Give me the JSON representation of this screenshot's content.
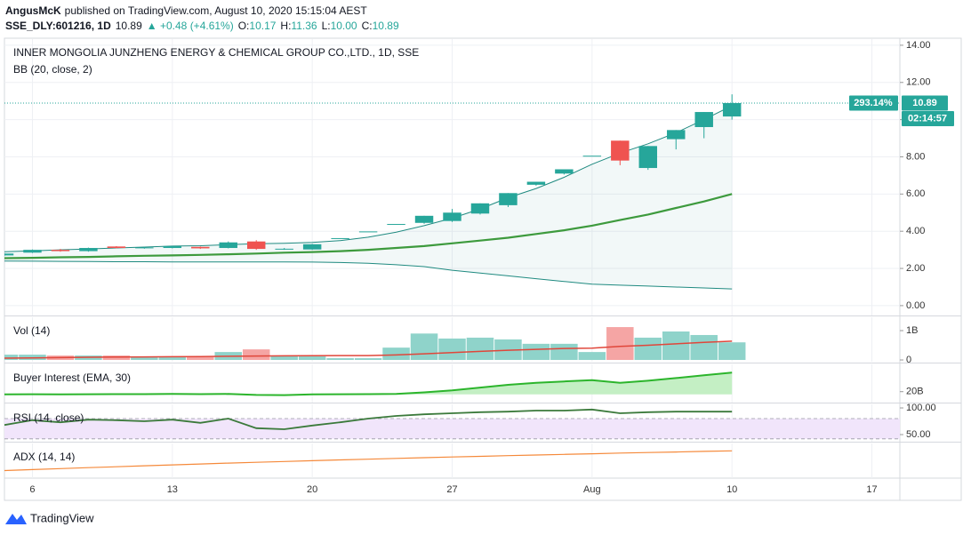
{
  "header": {
    "author": "AngusMcK",
    "published": "published on TradingView.com, August 10, 2020 15:15:04 AEST",
    "symbol": "SSE_DLY:601216, 1D",
    "last": "10.89",
    "change": "▲ +0.48 (+4.61%)",
    "ohlc": [
      {
        "label": "O:",
        "value": "10.17"
      },
      {
        "label": "H:",
        "value": "11.36"
      },
      {
        "label": "L:",
        "value": "10.00"
      },
      {
        "label": "C:",
        "value": "10.89"
      }
    ],
    "change_label": "293.14%",
    "countdown": "02:14:57",
    "footer": "TradingView"
  },
  "chart_data": [
    {
      "type": "candlestick",
      "title": "INNER MONGOLIA JUNZHENG ENERGY & CHEMICAL GROUP CO.,LTD., 1D, SSE",
      "subtitle": "BB (20, close, 2)",
      "x": [
        "2020-07-03",
        "2020-07-06",
        "2020-07-07",
        "2020-07-08",
        "2020-07-09",
        "2020-07-10",
        "2020-07-13",
        "2020-07-14",
        "2020-07-15",
        "2020-07-16",
        "2020-07-17",
        "2020-07-20",
        "2020-07-21",
        "2020-07-22",
        "2020-07-23",
        "2020-07-24",
        "2020-07-27",
        "2020-07-28",
        "2020-07-29",
        "2020-07-30",
        "2020-07-31",
        "2020-08-03",
        "2020-08-04",
        "2020-08-05",
        "2020-08-06",
        "2020-08-07",
        "2020-08-10"
      ],
      "open": [
        2.7,
        2.85,
        3.0,
        2.93,
        3.18,
        3.1,
        3.1,
        3.16,
        3.1,
        3.45,
        3.05,
        3.02,
        3.63,
        3.99,
        4.39,
        4.45,
        4.55,
        4.95,
        5.4,
        6.5,
        7.1,
        8.06,
        8.87,
        7.4,
        8.95,
        9.6,
        10.17
      ],
      "high": [
        2.82,
        3.02,
        3.05,
        3.12,
        3.2,
        3.16,
        3.22,
        3.18,
        3.45,
        3.52,
        3.1,
        3.32,
        3.63,
        3.99,
        4.39,
        4.83,
        5.2,
        5.5,
        6.05,
        6.66,
        7.33,
        8.06,
        8.87,
        8.58,
        9.44,
        10.41,
        11.36
      ],
      "low": [
        2.68,
        2.83,
        2.9,
        2.9,
        3.08,
        3.06,
        3.08,
        3.05,
        3.08,
        3.0,
        3.0,
        3.0,
        3.63,
        3.99,
        4.39,
        4.4,
        4.5,
        4.9,
        5.3,
        6.45,
        7.05,
        8.06,
        7.55,
        7.3,
        8.4,
        9.0,
        10.0
      ],
      "close": [
        2.8,
        3.0,
        2.93,
        3.1,
        3.1,
        3.13,
        3.2,
        3.08,
        3.4,
        3.05,
        3.06,
        3.3,
        3.63,
        3.99,
        4.39,
        4.83,
        5.0,
        5.5,
        6.05,
        6.66,
        7.33,
        8.06,
        7.8,
        8.58,
        9.44,
        10.41,
        10.89
      ],
      "bb": {
        "upper": [
          2.9,
          2.95,
          3.0,
          3.05,
          3.1,
          3.15,
          3.2,
          3.22,
          3.28,
          3.33,
          3.35,
          3.4,
          3.5,
          3.68,
          3.95,
          4.3,
          4.7,
          5.2,
          5.8,
          6.3,
          6.9,
          7.6,
          8.2,
          8.7,
          9.3,
          10.0,
          10.75
        ],
        "basis": [
          2.55,
          2.57,
          2.6,
          2.62,
          2.65,
          2.68,
          2.7,
          2.73,
          2.76,
          2.8,
          2.85,
          2.88,
          2.93,
          3.0,
          3.1,
          3.2,
          3.35,
          3.5,
          3.65,
          3.85,
          4.05,
          4.3,
          4.6,
          4.9,
          5.25,
          5.6,
          6.0
        ],
        "lower": [
          2.4,
          2.39,
          2.38,
          2.37,
          2.36,
          2.36,
          2.35,
          2.35,
          2.35,
          2.35,
          2.35,
          2.34,
          2.32,
          2.28,
          2.2,
          2.1,
          1.9,
          1.75,
          1.6,
          1.45,
          1.3,
          1.15,
          1.1,
          1.05,
          1.0,
          0.95,
          0.9
        ]
      },
      "up_color": "#26a69a",
      "down_color": "#ef5350",
      "band_color": "#1f8a80",
      "basis_color": "#3d9a3d",
      "ylim": [
        -0.53,
        14.33
      ],
      "yticks": [
        {
          "value": 0,
          "label": "0.00"
        },
        {
          "value": 2,
          "label": "2.00"
        },
        {
          "value": 4,
          "label": "4.00"
        },
        {
          "value": 6,
          "label": "6.00"
        },
        {
          "value": 8,
          "label": "8.00"
        },
        {
          "value": 10,
          "label": "10.00"
        },
        {
          "value": 12,
          "label": "12.00"
        },
        {
          "value": 14,
          "label": "14.00"
        }
      ],
      "grid": true
    },
    {
      "type": "bar",
      "title": "Vol (14)",
      "x": [
        "2020-07-03",
        "2020-07-06",
        "2020-07-07",
        "2020-07-08",
        "2020-07-09",
        "2020-07-10",
        "2020-07-13",
        "2020-07-14",
        "2020-07-15",
        "2020-07-16",
        "2020-07-17",
        "2020-07-20",
        "2020-07-21",
        "2020-07-22",
        "2020-07-23",
        "2020-07-24",
        "2020-07-27",
        "2020-07-28",
        "2020-07-29",
        "2020-07-30",
        "2020-07-31",
        "2020-08-03",
        "2020-08-04",
        "2020-08-05",
        "2020-08-06",
        "2020-08-07",
        "2020-08-10"
      ],
      "values": [
        180000000,
        180000000,
        150000000,
        150000000,
        150000000,
        100000000,
        100000000,
        100000000,
        270000000,
        360000000,
        150000000,
        120000000,
        60000000,
        60000000,
        420000000,
        900000000,
        730000000,
        760000000,
        700000000,
        550000000,
        550000000,
        270000000,
        1120000000,
        760000000,
        970000000,
        850000000,
        600000000
      ],
      "ma": [
        60000000,
        70000000,
        80000000,
        90000000,
        100000000,
        105000000,
        110000000,
        115000000,
        125000000,
        135000000,
        140000000,
        145000000,
        148000000,
        150000000,
        170000000,
        210000000,
        250000000,
        290000000,
        330000000,
        360000000,
        390000000,
        405000000,
        460000000,
        500000000,
        550000000,
        600000000,
        640000000
      ],
      "up_color": "#8fd3ca",
      "down_color": "#f5a5a4",
      "ma_color": "#e0463a",
      "ylim": [
        -60000000,
        1455000000
      ],
      "yticks": [
        {
          "value": 0,
          "label": "0"
        },
        {
          "value": 1000000000,
          "label": "1B"
        }
      ]
    },
    {
      "type": "area",
      "title": "Buyer Interest (EMA, 30)",
      "x": [
        "2020-07-03",
        "2020-07-06",
        "2020-07-07",
        "2020-07-08",
        "2020-07-09",
        "2020-07-10",
        "2020-07-13",
        "2020-07-14",
        "2020-07-15",
        "2020-07-16",
        "2020-07-17",
        "2020-07-20",
        "2020-07-21",
        "2020-07-22",
        "2020-07-23",
        "2020-07-24",
        "2020-07-27",
        "2020-07-28",
        "2020-07-29",
        "2020-07-30",
        "2020-07-31",
        "2020-08-03",
        "2020-08-04",
        "2020-08-05",
        "2020-08-06",
        "2020-08-07",
        "2020-08-10"
      ],
      "values": [
        18000000000,
        18100000000,
        18000000000,
        18100000000,
        18200000000,
        18200000000,
        18300000000,
        18200000000,
        18300000000,
        17600000000,
        17500000000,
        18000000000,
        18100000000,
        18200000000,
        18300000000,
        19500000000,
        21000000000,
        23000000000,
        25000000000,
        26500000000,
        27500000000,
        28500000000,
        26500000000,
        28000000000,
        30000000000,
        32000000000,
        34000000000
      ],
      "color": "#2cb52c",
      "fill": "#c4efc4",
      "ylim": [
        12000000000,
        40000000000
      ],
      "yticks": [
        {
          "value": 20000000000,
          "label": "20B"
        }
      ]
    },
    {
      "type": "line",
      "title": "RSI (14, close)",
      "x": [
        "2020-07-03",
        "2020-07-06",
        "2020-07-07",
        "2020-07-08",
        "2020-07-09",
        "2020-07-10",
        "2020-07-13",
        "2020-07-14",
        "2020-07-15",
        "2020-07-16",
        "2020-07-17",
        "2020-07-20",
        "2020-07-21",
        "2020-07-22",
        "2020-07-23",
        "2020-07-24",
        "2020-07-27",
        "2020-07-28",
        "2020-07-29",
        "2020-07-30",
        "2020-07-31",
        "2020-08-03",
        "2020-08-04",
        "2020-08-05",
        "2020-08-06",
        "2020-08-07",
        "2020-08-10"
      ],
      "values": [
        68,
        77,
        73,
        78,
        77,
        75,
        78,
        72,
        80,
        62,
        60,
        67,
        73,
        80,
        85,
        88,
        90,
        92,
        93,
        95,
        95,
        97,
        90,
        92,
        93,
        93,
        93
      ],
      "band": [
        42,
        80
      ],
      "band_color": "#f1e5fb",
      "color": "#3b7a3b",
      "ylim": [
        36.7,
        106.7
      ],
      "yticks": [
        {
          "value": 50,
          "label": "50.00"
        },
        {
          "value": 100,
          "label": "100.00"
        }
      ]
    },
    {
      "type": "line",
      "title": "ADX (14, 14)",
      "x": [
        "2020-07-03",
        "2020-07-06",
        "2020-07-07",
        "2020-07-08",
        "2020-07-09",
        "2020-07-10",
        "2020-07-13",
        "2020-07-14",
        "2020-07-15",
        "2020-07-16",
        "2020-07-17",
        "2020-07-20",
        "2020-07-21",
        "2020-07-22",
        "2020-07-23",
        "2020-07-24",
        "2020-07-27",
        "2020-07-28",
        "2020-07-29",
        "2020-07-30",
        "2020-07-31",
        "2020-08-03",
        "2020-08-04",
        "2020-08-05",
        "2020-08-06",
        "2020-08-07",
        "2020-08-10"
      ],
      "values": [
        12,
        13.6,
        15.1,
        16.6,
        18.1,
        19.6,
        21,
        22.4,
        23.8,
        25.1,
        26.4,
        27.7,
        28.9,
        30.1,
        31.3,
        32.4,
        33.5,
        34.6,
        35.7,
        36.7,
        37.7,
        38.7,
        39.7,
        40.6,
        41.5,
        42.4,
        43.3
      ],
      "color": "#f5893a",
      "ylim": [
        0,
        55
      ],
      "yticks": [],
      "xlim": [
        "2020-07-03",
        "2020-08-18"
      ],
      "xticks": [
        {
          "value": "2020-07-06",
          "label": "6"
        },
        {
          "value": "2020-07-13",
          "label": "13"
        },
        {
          "value": "2020-07-20",
          "label": "20"
        },
        {
          "value": "2020-07-27",
          "label": "27"
        },
        {
          "value": "2020-08-03",
          "label": "Aug"
        },
        {
          "value": "2020-08-10",
          "label": "10"
        },
        {
          "value": "2020-08-17",
          "label": "17"
        }
      ]
    }
  ]
}
